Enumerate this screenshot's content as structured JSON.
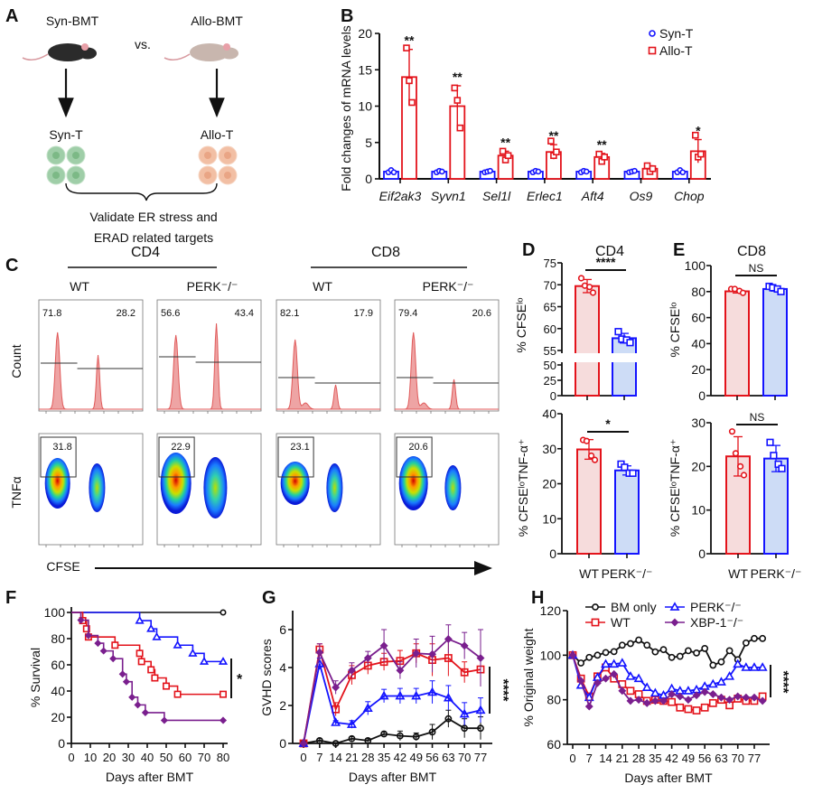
{
  "panel_labels": [
    "A",
    "B",
    "C",
    "D",
    "E",
    "F",
    "G",
    "H"
  ],
  "panel_a": {
    "left_group": "Syn-BMT",
    "vs": "vs.",
    "right_group": "Allo-BMT",
    "left_cells": "Syn-T",
    "right_cells": "Allo-T",
    "caption_line1": "Validate ER stress and",
    "caption_line2": "ERAD related targets",
    "colors": {
      "syn_mouse": "#2b2b2b",
      "allo_mouse": "#c8b6ae",
      "syn_cells": "#9fcea8",
      "allo_cells": "#f2bfa4"
    }
  },
  "panel_c": {
    "groups": [
      "CD4",
      "CD8"
    ],
    "genotypes": [
      "WT",
      "PERK⁻/⁻",
      "WT",
      "PERK⁻/⁻"
    ],
    "histogram_ylabel": "Count",
    "density_ylabel": "TNFα",
    "xlabel": "CFSE",
    "histogram_gates": [
      [
        "71.8",
        "28.2"
      ],
      [
        "56.6",
        "43.4"
      ],
      [
        "82.1",
        "17.9"
      ],
      [
        "79.4",
        "20.6"
      ]
    ],
    "density_gates": [
      "31.8",
      "22.9",
      "23.1",
      "20.6"
    ],
    "colors": {
      "histogram": "#e05a5a"
    }
  },
  "colors": {
    "red": "#e3131b",
    "blue": "#1414ff",
    "purple": "#7a1f8e",
    "black": "#111111",
    "red_fill": "#f6dcdc",
    "blue_fill": "#cddcf6"
  },
  "chart_data": [
    {
      "id": "B",
      "type": "bar",
      "ylabel": "Fold changes of mRNA levels",
      "ylim": [
        0,
        20
      ],
      "yticks": [
        0,
        5,
        10,
        15,
        20
      ],
      "categories": [
        "Eif2ak3",
        "Syvn1",
        "Sel1l",
        "Erlec1",
        "Aft4",
        "Os9",
        "Chop"
      ],
      "legend_position": "top-right",
      "series": [
        {
          "name": "Syn-T",
          "marker": "circle",
          "color": "#1414ff",
          "values": [
            1,
            1,
            1,
            1,
            1,
            1,
            1
          ],
          "sd": [
            0.2,
            0.15,
            0.15,
            0.15,
            0.15,
            0.15,
            0.2
          ],
          "points": [
            [
              0.9,
              1.2,
              0.9
            ],
            [
              0.9,
              1.1,
              1.0
            ],
            [
              0.9,
              1.0,
              1.1
            ],
            [
              0.9,
              1.1,
              1.0
            ],
            [
              0.9,
              1.1,
              1.0
            ],
            [
              0.9,
              1.0,
              1.1
            ],
            [
              0.9,
              1.2,
              0.9
            ]
          ]
        },
        {
          "name": "Allo-T",
          "marker": "square",
          "color": "#e3131b",
          "values": [
            14,
            10,
            3.2,
            3.7,
            3.0,
            1.4,
            3.8
          ],
          "sd": [
            3.8,
            2.8,
            0.6,
            1.0,
            0.5,
            0.4,
            1.6
          ],
          "points": [
            [
              18,
              13.5,
              10.5
            ],
            [
              12.5,
              10.8,
              7.0
            ],
            [
              3.8,
              2.6,
              3.2
            ],
            [
              5.2,
              3.2,
              3.7
            ],
            [
              3.4,
              2.4,
              3.0
            ],
            [
              1.8,
              1.0,
              1.4
            ],
            [
              6.0,
              3.0,
              3.4
            ]
          ]
        }
      ],
      "significance": [
        "**",
        "**",
        "**",
        "**",
        "**",
        "",
        "*"
      ]
    },
    {
      "id": "D-top",
      "type": "bar",
      "title": "CD4",
      "ylabel": "% CFSEˡᵒ",
      "ylim": [
        0,
        75
      ],
      "axis_break": [
        50,
        55
      ],
      "yticks": [
        0,
        25,
        50,
        55,
        60,
        65,
        70,
        75
      ],
      "categories": [
        "WT",
        "PERK⁻/⁻"
      ],
      "values": [
        69.7,
        57.8
      ],
      "sd": [
        1.5,
        1.1
      ],
      "points": [
        [
          71.5,
          69.8,
          69.5,
          68.2
        ],
        [
          59.3,
          57.6,
          57.4,
          56.8
        ]
      ],
      "significance": "****"
    },
    {
      "id": "D-bottom",
      "type": "bar",
      "ylabel": "% CFSEˡᵒTNF-α⁺",
      "ylim": [
        0,
        40
      ],
      "yticks": [
        0,
        10,
        20,
        30,
        40
      ],
      "categories": [
        "WT",
        "PERK⁻/⁻"
      ],
      "values": [
        29.8,
        23.8
      ],
      "sd": [
        2.8,
        1.3
      ],
      "points": [
        [
          32.5,
          32.2,
          28.0,
          26.8
        ],
        [
          25.6,
          24.7,
          23.0,
          23.0
        ]
      ],
      "significance": "*"
    },
    {
      "id": "E-top",
      "type": "bar",
      "title": "CD8",
      "ylabel": "% CFSEˡᵒ",
      "ylim": [
        0,
        100
      ],
      "yticks": [
        0,
        20,
        40,
        60,
        80,
        100
      ],
      "categories": [
        "WT",
        "PERK⁻/⁻"
      ],
      "values": [
        80.2,
        82.0
      ],
      "sd": [
        1.3,
        1.6
      ],
      "points": [
        [
          82,
          82,
          80.5,
          79
        ],
        [
          84,
          83,
          82,
          80
        ]
      ],
      "significance": "NS"
    },
    {
      "id": "E-bottom",
      "type": "bar",
      "ylabel": "% CFSEˡᵒTNF-α⁺",
      "ylim": [
        0,
        30
      ],
      "yticks": [
        0,
        10,
        20,
        30
      ],
      "categories": [
        "WT",
        "PERK⁻/⁻"
      ],
      "values": [
        22.3,
        21.8
      ],
      "sd": [
        4.5,
        3.0
      ],
      "points": [
        [
          28,
          23,
          20,
          18
        ],
        [
          25.5,
          22.5,
          20.5,
          19.5
        ]
      ],
      "significance": "NS"
    },
    {
      "id": "F",
      "type": "line",
      "subtype": "survival-step",
      "xlabel": "Days after BMT",
      "ylabel": "% Survival",
      "xlim": [
        0,
        80
      ],
      "ylim": [
        0,
        100
      ],
      "xticks": [
        0,
        10,
        20,
        30,
        40,
        50,
        60,
        70,
        80
      ],
      "yticks": [
        0,
        20,
        40,
        60,
        80,
        100
      ],
      "significance": "*",
      "series": [
        {
          "name": "BM only",
          "marker": "circle",
          "color": "#111111",
          "steps": [],
          "end": 80
        },
        {
          "name": "PERK⁻/⁻",
          "marker": "triangle",
          "color": "#1414ff",
          "steps": [
            [
              36,
              93.75
            ],
            [
              42,
              87.5
            ],
            [
              45,
              81.25
            ],
            [
              56,
              75
            ],
            [
              64,
              68.75
            ],
            [
              70,
              62.5
            ]
          ],
          "end": 80
        },
        {
          "name": "WT",
          "marker": "square",
          "color": "#e3131b",
          "steps": [
            [
              6,
              93.75
            ],
            [
              8,
              87.5
            ],
            [
              9,
              81.25
            ],
            [
              23,
              75
            ],
            [
              36,
              68.75
            ],
            [
              37,
              62.5
            ],
            [
              42,
              56.25
            ],
            [
              44,
              50
            ],
            [
              50,
              43.75
            ],
            [
              56,
              37.5
            ]
          ],
          "end": 80
        },
        {
          "name": "XBP-1⁻/⁻",
          "marker": "diamond",
          "color": "#7a1f8e",
          "steps": [
            [
              5,
              94.1
            ],
            [
              9,
              82.4
            ],
            [
              14,
              76.5
            ],
            [
              17,
              70.6
            ],
            [
              22,
              64.7
            ],
            [
              27,
              52.9
            ],
            [
              29,
              47.1
            ],
            [
              32,
              35.3
            ],
            [
              35,
              29.4
            ],
            [
              39,
              23.5
            ],
            [
              49,
              17.6
            ]
          ],
          "end": 80
        }
      ]
    },
    {
      "id": "G",
      "type": "line",
      "xlabel": "Days after BMT",
      "ylabel": "GVHD scores",
      "xlim": [
        0,
        77
      ],
      "ylim": [
        0,
        7
      ],
      "x": [
        0,
        7,
        14,
        21,
        28,
        35,
        42,
        49,
        56,
        63,
        70,
        77
      ],
      "yticks": [
        0,
        2,
        4,
        6
      ],
      "significance": "****",
      "series": [
        {
          "name": "BM only",
          "marker": "circle",
          "color": "#111111",
          "values": [
            0,
            0.15,
            0,
            0.25,
            0.15,
            0.5,
            0.4,
            0.35,
            0.6,
            1.3,
            0.8,
            0.8
          ],
          "sd": [
            0,
            0.1,
            0.05,
            0.1,
            0.1,
            0.1,
            0.25,
            0.2,
            0.4,
            0.45,
            0.5,
            0.6
          ]
        },
        {
          "name": "WT",
          "marker": "square",
          "color": "#e3131b",
          "values": [
            0,
            4.95,
            1.8,
            3.6,
            4.1,
            4.3,
            4.35,
            4.75,
            4.4,
            4.5,
            3.75,
            3.9
          ],
          "sd": [
            0,
            0.3,
            0.35,
            0.5,
            0.45,
            0.45,
            0.55,
            0.5,
            0.85,
            0.95,
            0.55,
            0.65
          ]
        },
        {
          "name": "PERK⁻/⁻",
          "marker": "triangle",
          "color": "#1414ff",
          "values": [
            0,
            4.2,
            1.1,
            1.0,
            1.85,
            2.5,
            2.5,
            2.5,
            2.7,
            2.4,
            1.55,
            1.75
          ],
          "sd": [
            0,
            0.3,
            0.1,
            0.2,
            0.35,
            0.35,
            0.4,
            0.4,
            0.6,
            0.65,
            0.6,
            0.65
          ]
        },
        {
          "name": "XBP-1⁻/⁻",
          "marker": "diamond",
          "color": "#7a1f8e",
          "values": [
            0,
            4.8,
            2.95,
            3.85,
            4.5,
            5.15,
            3.85,
            4.75,
            4.7,
            5.5,
            5.15,
            4.5
          ],
          "sd": [
            0,
            0.45,
            0.35,
            0.4,
            0.35,
            0.85,
            0.45,
            0.75,
            0.95,
            0.75,
            0.7,
            1.5
          ]
        }
      ]
    },
    {
      "id": "H",
      "type": "line",
      "xlabel": "Days after BMT",
      "ylabel": "% Original weight",
      "xlim": [
        0,
        77
      ],
      "ylim": [
        60,
        120
      ],
      "xticks": [
        0,
        7,
        14,
        21,
        28,
        35,
        42,
        49,
        56,
        63,
        70,
        77
      ],
      "x": [
        0,
        3.5,
        7,
        10.5,
        14,
        17.5,
        21,
        24.5,
        28,
        31.5,
        35,
        38.5,
        42,
        45.5,
        49,
        52.5,
        56,
        59.5,
        63,
        66.5,
        70,
        73.5,
        77,
        80.5
      ],
      "yticks": [
        60,
        80,
        100,
        120
      ],
      "legend_position": "top",
      "significance": "****",
      "series": [
        {
          "name": "BM only",
          "marker": "circle",
          "color": "#111111",
          "values": [
            100,
            96.5,
            99,
            100,
            101.2,
            101.6,
            104.5,
            105.2,
            106.8,
            104.5,
            101.5,
            102.5,
            99,
            99.5,
            102,
            101,
            103,
            95.5,
            97,
            102,
            98,
            105.5,
            107.5,
            107.5
          ]
        },
        {
          "name": "WT",
          "marker": "square",
          "color": "#e3131b",
          "values": [
            100,
            89.5,
            81.5,
            90.5,
            94.5,
            89.5,
            87,
            84,
            82.5,
            79.5,
            80,
            79.5,
            79,
            76.5,
            75.8,
            75.2,
            76.5,
            78.5,
            80,
            77.5,
            80.5,
            79.5,
            79.5,
            81.5
          ]
        },
        {
          "name": "PERK⁻/⁻",
          "marker": "triangle",
          "color": "#1414ff",
          "values": [
            100,
            86.5,
            81,
            90,
            96,
            96,
            96.5,
            90.5,
            89.5,
            85.5,
            83,
            82,
            85,
            84,
            84,
            84.5,
            86,
            87,
            88,
            90.5,
            96,
            94.5,
            94.5,
            94.5
          ]
        },
        {
          "name": "XBP-1⁻/⁻",
          "marker": "diamond",
          "color": "#7a1f8e",
          "values": [
            100,
            88.5,
            77,
            87.5,
            89.5,
            91.5,
            84,
            79.5,
            80,
            78.5,
            79.5,
            79.5,
            82.5,
            81.5,
            80,
            82,
            83.5,
            82.5,
            81,
            80,
            81.5,
            81,
            81,
            79.5
          ]
        }
      ]
    }
  ]
}
